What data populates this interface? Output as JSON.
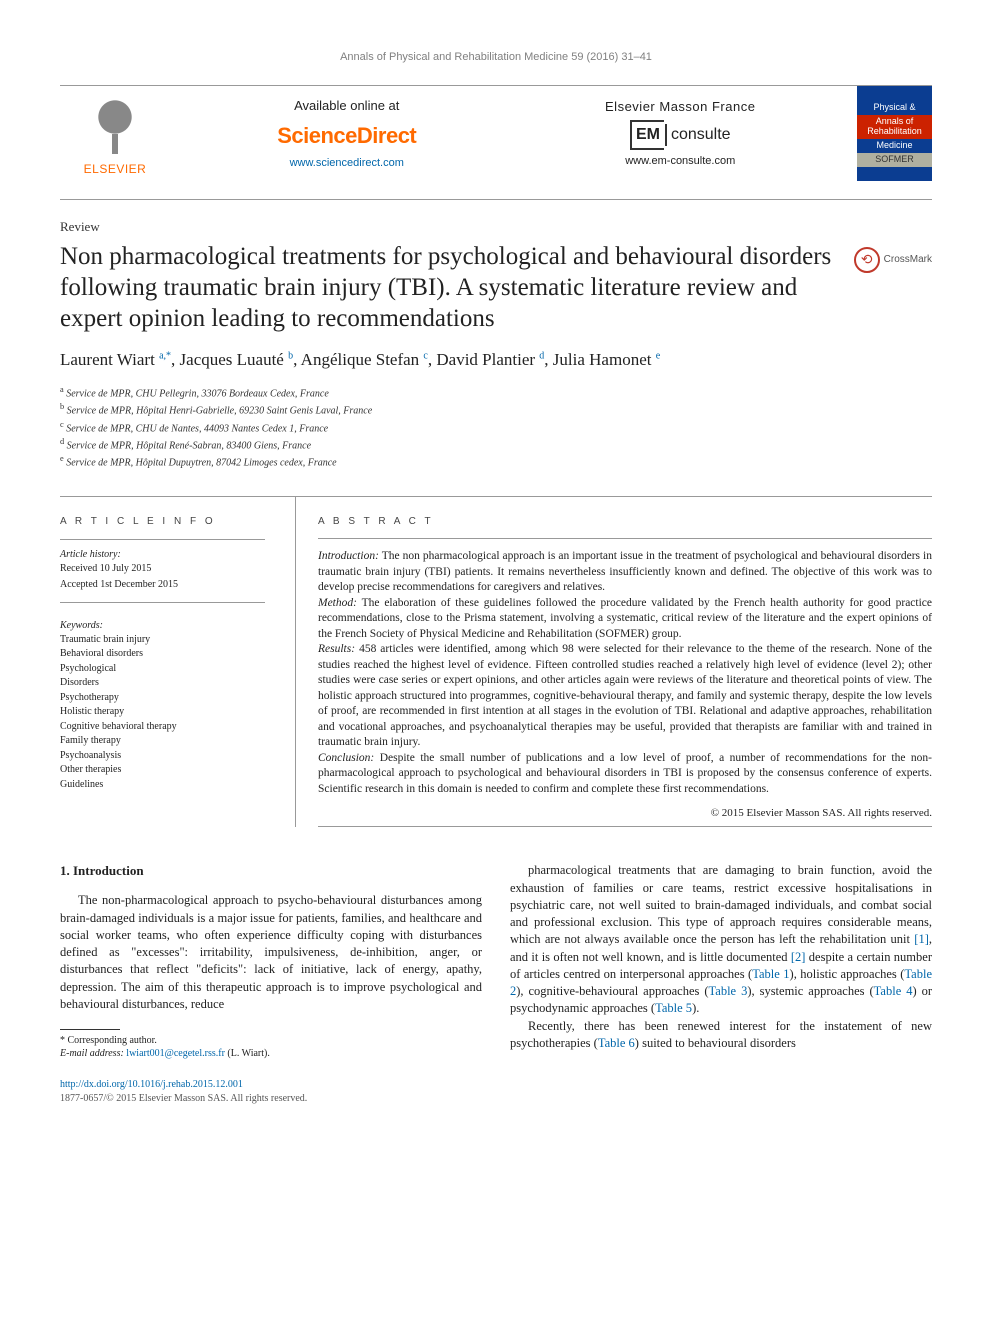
{
  "running_header": "Annals of Physical and Rehabilitation Medicine 59 (2016) 31–41",
  "masthead": {
    "elsevier_label": "ELSEVIER",
    "sd_avail": "Available online at",
    "sd_logo": "ScienceDirect",
    "sd_url": "www.sciencedirect.com",
    "em_france": "Elsevier Masson France",
    "em_box": "EM",
    "em_consulte": "consulte",
    "em_url": "www.em-consulte.com",
    "journal_cover_row1": "Physical &",
    "journal_cover_row2a": "Annals of",
    "journal_cover_row2b": "Rehabilitation",
    "journal_cover_row3": "Medicine",
    "journal_cover_row4": "SOFMER",
    "cover_colors": {
      "bg1": "#0b3d91",
      "bg2": "#cc2200",
      "bg3": "#b0b0a0"
    }
  },
  "article_type": "Review",
  "title": "Non pharmacological treatments for psychological and behavioural disorders following traumatic brain injury (TBI). A systematic literature review and expert opinion leading to recommendations",
  "crossmark_label": "CrossMark",
  "authors_html": "Laurent Wiart <sup>a,*</sup>, Jacques Luauté <sup>b</sup>, Angélique Stefan <sup>c</sup>, David Plantier <sup>d</sup>, Julia Hamonet <sup>e</sup>",
  "affiliations": [
    {
      "sup": "a",
      "text": "Service de MPR, CHU Pellegrin, 33076 Bordeaux Cedex, France"
    },
    {
      "sup": "b",
      "text": "Service de MPR, Hôpital Henri-Gabrielle, 69230 Saint Genis Laval, France"
    },
    {
      "sup": "c",
      "text": "Service de MPR, CHU de Nantes, 44093 Nantes Cedex 1, France"
    },
    {
      "sup": "d",
      "text": "Service de MPR, Hôpital René-Sabran, 83400 Giens, France"
    },
    {
      "sup": "e",
      "text": "Service de MPR, Hôpital Dupuytren, 87042 Limoges cedex, France"
    }
  ],
  "info": {
    "heading": "A R T I C L E   I N F O",
    "history_label": "Article history:",
    "received": "Received 10 July 2015",
    "accepted": "Accepted 1st December 2015",
    "kw_label": "Keywords:",
    "keywords": [
      "Traumatic brain injury",
      "Behavioral disorders",
      "Psychological",
      "Disorders",
      "Psychotherapy",
      "Holistic therapy",
      "Cognitive behavioral therapy",
      "Family therapy",
      "Psychoanalysis",
      "Other therapies",
      "Guidelines"
    ]
  },
  "abstract": {
    "heading": "A B S T R A C T",
    "intro_label": "Introduction:",
    "intro": "The non pharmacological approach is an important issue in the treatment of psychological and behavioural disorders in traumatic brain injury (TBI) patients. It remains nevertheless insufficiently known and defined. The objective of this work was to develop precise recommendations for caregivers and relatives.",
    "method_label": "Method:",
    "method": "The elaboration of these guidelines followed the procedure validated by the French health authority for good practice recommendations, close to the Prisma statement, involving a systematic, critical review of the literature and the expert opinions of the French Society of Physical Medicine and Rehabilitation (SOFMER) group.",
    "results_label": "Results:",
    "results": "458 articles were identified, among which 98 were selected for their relevance to the theme of the research. None of the studies reached the highest level of evidence. Fifteen controlled studies reached a relatively high level of evidence (level 2); other studies were case series or expert opinions, and other articles again were reviews of the literature and theoretical points of view. The holistic approach structured into programmes, cognitive-behavioural therapy, and family and systemic therapy, despite the low levels of proof, are recommended in first intention at all stages in the evolution of TBI. Relational and adaptive approaches, rehabilitation and vocational approaches, and psychoanalytical therapies may be useful, provided that therapists are familiar with and trained in traumatic brain injury.",
    "conclusion_label": "Conclusion:",
    "conclusion": "Despite the small number of publications and a low level of proof, a number of recommendations for the non-pharmacological approach to psychological and behavioural disorders in TBI is proposed by the consensus conference of experts. Scientific research in this domain is needed to confirm and complete these first recommendations.",
    "copyright": "© 2015 Elsevier Masson SAS. All rights reserved."
  },
  "body": {
    "section_head": "1. Introduction",
    "p1": "The non-pharmacological approach to psycho-behavioural disturbances among brain-damaged individuals is a major issue for patients, families, and healthcare and social worker teams, who often experience difficulty coping with disturbances defined as \"excesses\": irritability, impulsiveness, de-inhibition, anger, or disturbances that reflect \"deficits\": lack of initiative, lack of energy, apathy, depression. The aim of this therapeutic approach is to improve psychological and behavioural disturbances, reduce",
    "p2a": "pharmacological treatments that are damaging to brain function, avoid the exhaustion of families or care teams, restrict excessive hospitalisations in psychiatric care, not well suited to brain-damaged individuals, and combat social and professional exclusion. This type of approach requires considerable means, which are not always available once the person has left the rehabilitation unit ",
    "ref1": "[1]",
    "p2b": ", and it is often not well known, and is little documented ",
    "ref2": "[2]",
    "p2c": " despite a certain number of articles centred on interpersonal approaches (",
    "t1": "Table 1",
    "p2d": "), holistic approaches (",
    "t2": "Table 2",
    "p2e": "), cognitive-behavioural approaches (",
    "t3": "Table 3",
    "p2f": "), systemic approaches (",
    "t4": "Table 4",
    "p2g": ") or psychodynamic approaches (",
    "t5": "Table 5",
    "p2h": ").",
    "p3a": "Recently, there has been renewed interest for the instatement of new psychotherapies (",
    "t6": "Table 6",
    "p3b": ") suited to behavioural disorders"
  },
  "footnote": {
    "corr_label": "* Corresponding author.",
    "email_label": "E-mail address:",
    "email": "lwiart001@cegetel.rss.fr",
    "email_who": "(L. Wiart)."
  },
  "doi": {
    "url": "http://dx.doi.org/10.1016/j.rehab.2015.12.001",
    "issn_line": "1877-0657/© 2015 Elsevier Masson SAS. All rights reserved."
  },
  "colors": {
    "link": "#0066aa",
    "elsevier_orange": "#ff6a00",
    "text": "#222222",
    "rule": "#999999"
  }
}
